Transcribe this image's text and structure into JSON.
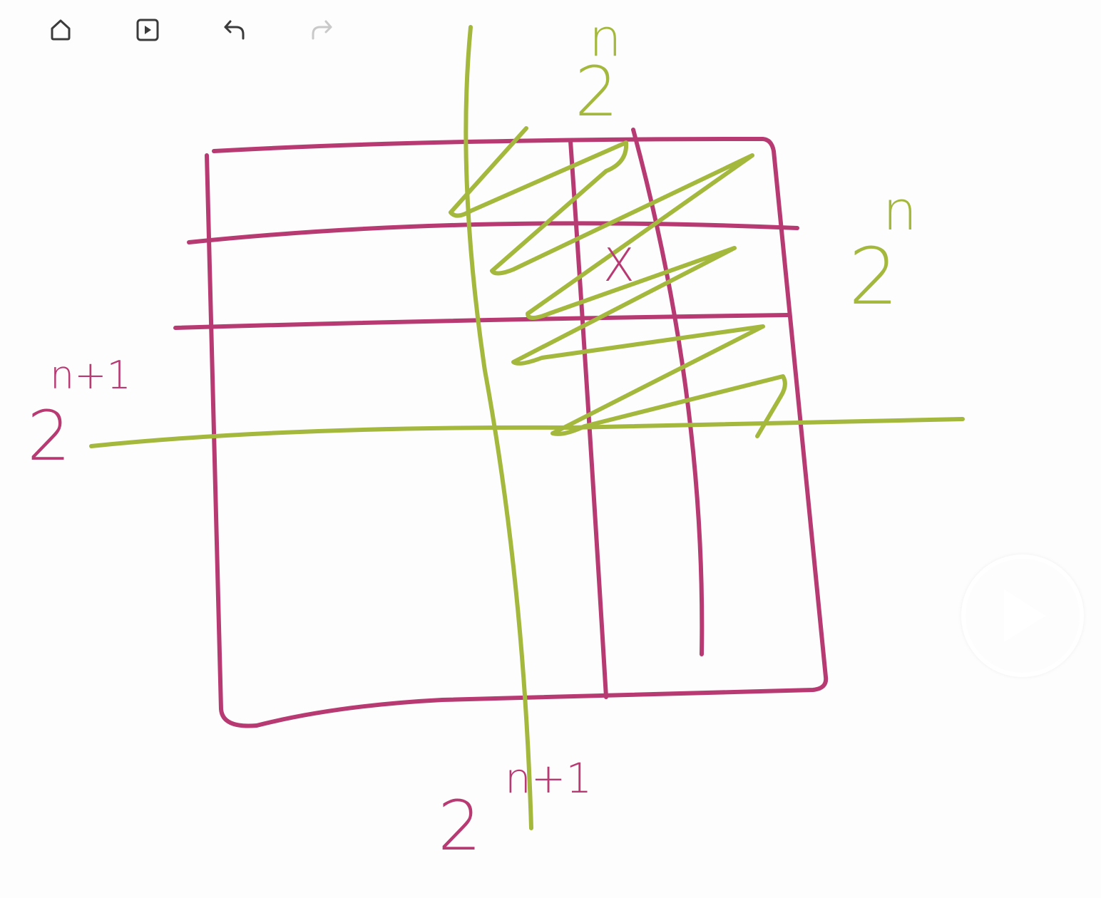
{
  "toolbar": {
    "tools": [
      {
        "id": "home",
        "icon": "home-icon"
      },
      {
        "id": "present",
        "icon": "present-icon"
      },
      {
        "id": "undo",
        "icon": "undo-icon"
      },
      {
        "id": "redo",
        "icon": "redo-icon",
        "disabled": true
      }
    ]
  },
  "labels": {
    "top_exp_base": "2",
    "top_exp_power": "n",
    "right_exp_base": "2",
    "right_exp_power": "n",
    "left_exp_base": "2",
    "left_exp_power": "n+1",
    "bottom_exp_base": "2",
    "bottom_exp_power": "n+1",
    "cell_mark": "X"
  },
  "colors": {
    "pink_ink": "#b83a73",
    "green_ink": "#a3b83c",
    "background": "#fdfdfd",
    "toolbar_icon": "#3b3b3b",
    "toolbar_icon_disabled": "#c9c9c9"
  },
  "overlay": {
    "play_button_icon": "play-icon"
  }
}
